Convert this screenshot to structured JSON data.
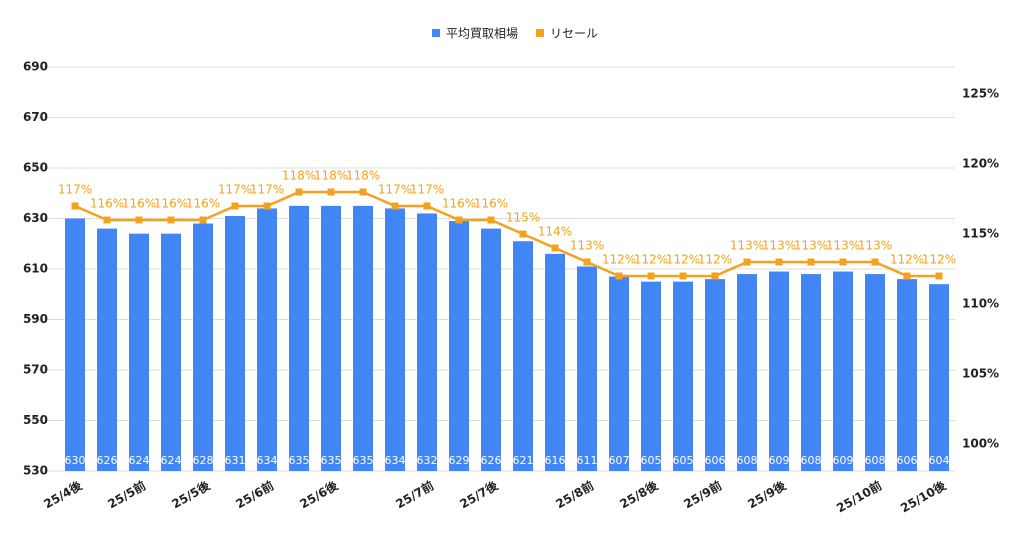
{
  "chart_data": {
    "type": "bar",
    "categories": [
      "25/4後",
      null,
      "25/5前",
      null,
      "25/5後",
      null,
      "25/6前",
      null,
      "25/6後",
      null,
      null,
      "25/7前",
      null,
      "25/7後",
      null,
      null,
      "25/8前",
      null,
      "25/8後",
      null,
      "25/9前",
      null,
      "25/9後",
      null,
      null,
      "25/10前",
      null,
      "25/10後"
    ],
    "series": [
      {
        "name": "平均買取相場",
        "color": "#4285f4",
        "type": "bar",
        "values": [
          630,
          626,
          624,
          624,
          628,
          631,
          634,
          635,
          635,
          635,
          634,
          632,
          629,
          626,
          621,
          616,
          611,
          607,
          605,
          605,
          606,
          608,
          609,
          608,
          609,
          608,
          606,
          604
        ]
      },
      {
        "name": "リセール",
        "color": "#f4a21b",
        "type": "line",
        "axis": "y2",
        "values": [
          117,
          116,
          116,
          116,
          116,
          117,
          117,
          118,
          118,
          118,
          117,
          117,
          116,
          116,
          115,
          114,
          113,
          112,
          112,
          112,
          112,
          113,
          113,
          113,
          113,
          113,
          112,
          112
        ],
        "value_labels": [
          "117%",
          "116%",
          "116%",
          "116%",
          "116%",
          "117%",
          "117%",
          "118%",
          "118%",
          "118%",
          "117%",
          "117%",
          "116%",
          "116%",
          "115%",
          "114%",
          "113%",
          "112%",
          "112%",
          "112%",
          "112%",
          "113%",
          "113%",
          "113%",
          "113%",
          "113%",
          "112%",
          "112%"
        ]
      }
    ],
    "ylim": [
      530,
      690
    ],
    "yticks": [
      530,
      550,
      570,
      590,
      610,
      630,
      650,
      670,
      690
    ],
    "y2lim": [
      98.07,
      126.93
    ],
    "y2ticks": [
      {
        "value": 100,
        "label": "100%"
      },
      {
        "value": 105,
        "label": "105%"
      },
      {
        "value": 110,
        "label": "110%"
      },
      {
        "value": 115,
        "label": "115%"
      },
      {
        "value": 120,
        "label": "120%"
      },
      {
        "value": 125,
        "label": "125%"
      }
    ],
    "grid": true,
    "legend": "top"
  }
}
